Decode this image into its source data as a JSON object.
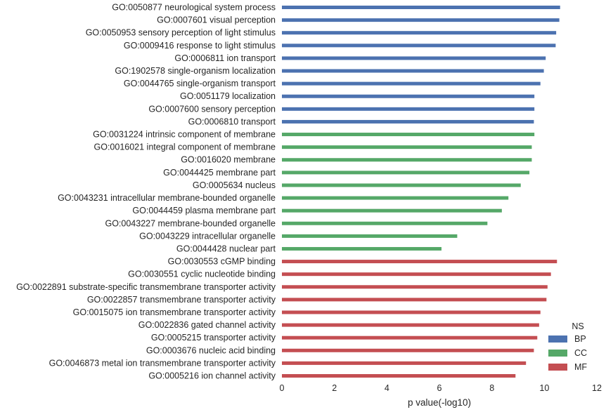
{
  "chart_data": {
    "type": "bar",
    "orientation": "horizontal",
    "xlabel": "p value(-log10)",
    "xlim": [
      0,
      12
    ],
    "xticks": [
      0,
      2,
      4,
      6,
      8,
      10,
      12
    ],
    "grid": false,
    "legend": {
      "title": "NS",
      "placement": "bottom-right",
      "entries": [
        {
          "name": "BP",
          "color": "#4c72b0"
        },
        {
          "name": "CC",
          "color": "#55a868"
        },
        {
          "name": "MF",
          "color": "#c44e52"
        }
      ]
    },
    "bars": [
      {
        "label": "GO:0050877 neurological system process",
        "value": 10.6,
        "ns": "BP"
      },
      {
        "label": "GO:0007601 visual perception",
        "value": 10.57,
        "ns": "BP"
      },
      {
        "label": "GO:0050953 sensory perception of light stimulus",
        "value": 10.45,
        "ns": "BP"
      },
      {
        "label": "GO:0009416 response to light stimulus",
        "value": 10.43,
        "ns": "BP"
      },
      {
        "label": "GO:0006811 ion transport",
        "value": 10.05,
        "ns": "BP"
      },
      {
        "label": "GO:1902578 single-organism localization",
        "value": 9.98,
        "ns": "BP"
      },
      {
        "label": "GO:0044765 single-organism transport",
        "value": 9.85,
        "ns": "BP"
      },
      {
        "label": "GO:0051179 localization",
        "value": 9.62,
        "ns": "BP"
      },
      {
        "label": "GO:0007600 sensory perception",
        "value": 9.62,
        "ns": "BP"
      },
      {
        "label": "GO:0006810 transport",
        "value": 9.6,
        "ns": "BP"
      },
      {
        "label": "GO:0031224 intrinsic component of membrane",
        "value": 9.62,
        "ns": "CC"
      },
      {
        "label": "GO:0016021 integral component of membrane",
        "value": 9.52,
        "ns": "CC"
      },
      {
        "label": "GO:0016020 membrane",
        "value": 9.52,
        "ns": "CC"
      },
      {
        "label": "GO:0044425 membrane part",
        "value": 9.43,
        "ns": "CC"
      },
      {
        "label": "GO:0005634 nucleus",
        "value": 9.1,
        "ns": "CC"
      },
      {
        "label": "GO:0043231 intracellular membrane-bounded organelle",
        "value": 8.63,
        "ns": "CC"
      },
      {
        "label": "GO:0044459 plasma membrane part",
        "value": 8.38,
        "ns": "CC"
      },
      {
        "label": "GO:0043227 membrane-bounded organelle",
        "value": 7.83,
        "ns": "CC"
      },
      {
        "label": "GO:0043229 intracellular organelle",
        "value": 6.68,
        "ns": "CC"
      },
      {
        "label": "GO:0044428 nuclear part",
        "value": 6.08,
        "ns": "CC"
      },
      {
        "label": "GO:0030553 cGMP binding",
        "value": 10.48,
        "ns": "MF"
      },
      {
        "label": "GO:0030551 cyclic nucleotide binding",
        "value": 10.25,
        "ns": "MF"
      },
      {
        "label": "GO:0022891 substrate-specific transmembrane transporter activity",
        "value": 10.12,
        "ns": "MF"
      },
      {
        "label": "GO:0022857 transmembrane transporter activity",
        "value": 10.08,
        "ns": "MF"
      },
      {
        "label": "GO:0015075 ion transmembrane transporter activity",
        "value": 9.85,
        "ns": "MF"
      },
      {
        "label": "GO:0022836 gated channel activity",
        "value": 9.8,
        "ns": "MF"
      },
      {
        "label": "GO:0005215 transporter activity",
        "value": 9.73,
        "ns": "MF"
      },
      {
        "label": "GO:0003676 nucleic acid binding",
        "value": 9.6,
        "ns": "MF"
      },
      {
        "label": "GO:0046873 metal ion transmembrane transporter activity",
        "value": 9.3,
        "ns": "MF"
      },
      {
        "label": "GO:0005216 ion channel activity",
        "value": 8.9,
        "ns": "MF"
      }
    ]
  }
}
